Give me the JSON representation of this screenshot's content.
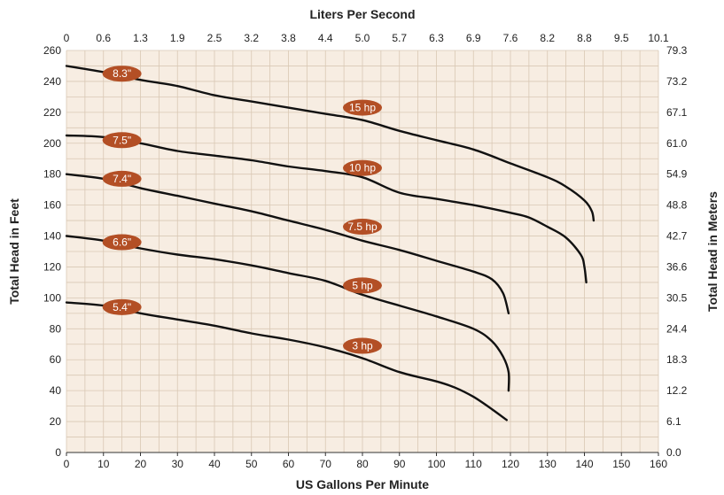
{
  "colors": {
    "plot_background": "#f7ede2",
    "grid": "#d9c8b4",
    "curve": "#111111",
    "label_pill": "#b34f25"
  },
  "chart_data": {
    "type": "line",
    "xlabel": "US Gallons Per Minute",
    "x2label": "Liters Per Second",
    "ylabel": "Total Head in Feet",
    "y2label": "Total Head in Meters",
    "xlim": [
      0,
      160
    ],
    "ylim": [
      0,
      260
    ],
    "grid": true,
    "x_ticks": [
      "0",
      "10",
      "20",
      "30",
      "40",
      "50",
      "60",
      "70",
      "80",
      "90",
      "100",
      "110",
      "120",
      "130",
      "140",
      "150",
      "160"
    ],
    "x2_ticks": [
      "0",
      "0.6",
      "1.3",
      "1.9",
      "2.5",
      "3.2",
      "3.8",
      "4.4",
      "5.0",
      "5.7",
      "6.3",
      "6.9",
      "7.6",
      "8.2",
      "8.8",
      "9.5",
      "10.1"
    ],
    "y_ticks": [
      "0",
      "20",
      "40",
      "60",
      "80",
      "100",
      "120",
      "140",
      "160",
      "180",
      "200",
      "220",
      "240",
      "260"
    ],
    "y2_ticks": [
      "0.0",
      "6.1",
      "12.2",
      "18.3",
      "24.4",
      "30.5",
      "36.6",
      "42.7",
      "48.8",
      "54.9",
      "61.0",
      "67.1",
      "73.2",
      "79.3"
    ],
    "series": [
      {
        "name": "8.3\"",
        "hp": "15 hp",
        "points": [
          [
            0,
            250
          ],
          [
            10,
            246
          ],
          [
            20,
            241
          ],
          [
            30,
            237
          ],
          [
            40,
            231
          ],
          [
            50,
            227
          ],
          [
            60,
            223
          ],
          [
            70,
            219
          ],
          [
            80,
            215
          ],
          [
            90,
            208
          ],
          [
            100,
            202
          ],
          [
            110,
            196
          ],
          [
            120,
            187
          ],
          [
            130,
            178
          ],
          [
            135,
            172
          ],
          [
            140,
            163
          ],
          [
            142,
            156
          ],
          [
            142.5,
            150
          ]
        ]
      },
      {
        "name": "7.5\"",
        "hp": "10 hp",
        "points": [
          [
            0,
            205
          ],
          [
            10,
            204
          ],
          [
            20,
            200
          ],
          [
            30,
            195
          ],
          [
            40,
            192
          ],
          [
            50,
            189
          ],
          [
            60,
            185
          ],
          [
            70,
            182
          ],
          [
            80,
            178
          ],
          [
            90,
            168
          ],
          [
            100,
            164
          ],
          [
            110,
            160
          ],
          [
            120,
            155
          ],
          [
            125,
            152
          ],
          [
            130,
            146
          ],
          [
            135,
            139
          ],
          [
            139,
            128
          ],
          [
            140,
            120
          ],
          [
            140.5,
            110
          ]
        ]
      },
      {
        "name": "7.4\"",
        "hp": "7.5 hp",
        "points": [
          [
            0,
            180
          ],
          [
            10,
            177
          ],
          [
            20,
            171
          ],
          [
            30,
            166
          ],
          [
            40,
            161
          ],
          [
            50,
            156
          ],
          [
            60,
            150
          ],
          [
            70,
            144
          ],
          [
            80,
            137
          ],
          [
            90,
            131
          ],
          [
            100,
            124
          ],
          [
            110,
            117
          ],
          [
            115,
            112
          ],
          [
            118,
            103
          ],
          [
            119.5,
            90
          ]
        ]
      },
      {
        "name": "6.6\"",
        "hp": "5 hp",
        "points": [
          [
            0,
            140
          ],
          [
            10,
            137
          ],
          [
            20,
            132
          ],
          [
            30,
            128
          ],
          [
            40,
            125
          ],
          [
            50,
            121
          ],
          [
            60,
            116
          ],
          [
            70,
            111
          ],
          [
            80,
            102
          ],
          [
            90,
            95
          ],
          [
            100,
            88
          ],
          [
            110,
            80
          ],
          [
            115,
            72
          ],
          [
            118,
            62
          ],
          [
            119.5,
            52
          ],
          [
            119.5,
            40
          ]
        ]
      },
      {
        "name": "5.4\"",
        "hp": "3 hp",
        "points": [
          [
            0,
            97
          ],
          [
            10,
            95
          ],
          [
            20,
            90
          ],
          [
            30,
            86
          ],
          [
            40,
            82
          ],
          [
            50,
            77
          ],
          [
            60,
            73
          ],
          [
            70,
            68
          ],
          [
            80,
            61
          ],
          [
            90,
            52
          ],
          [
            100,
            46
          ],
          [
            105,
            42
          ],
          [
            110,
            36
          ],
          [
            115,
            28
          ],
          [
            119,
            21
          ]
        ]
      }
    ],
    "labels": [
      {
        "text": "8.3\"",
        "x": 15,
        "y": 245
      },
      {
        "text": "7.5\"",
        "x": 15,
        "y": 202
      },
      {
        "text": "7.4\"",
        "x": 15,
        "y": 177
      },
      {
        "text": "6.6\"",
        "x": 15,
        "y": 136
      },
      {
        "text": "5.4\"",
        "x": 15,
        "y": 94
      },
      {
        "text": "15 hp",
        "x": 80,
        "y": 223
      },
      {
        "text": "10 hp",
        "x": 80,
        "y": 184
      },
      {
        "text": "7.5 hp",
        "x": 80,
        "y": 146
      },
      {
        "text": "5 hp",
        "x": 80,
        "y": 108
      },
      {
        "text": "3 hp",
        "x": 80,
        "y": 69
      }
    ]
  }
}
